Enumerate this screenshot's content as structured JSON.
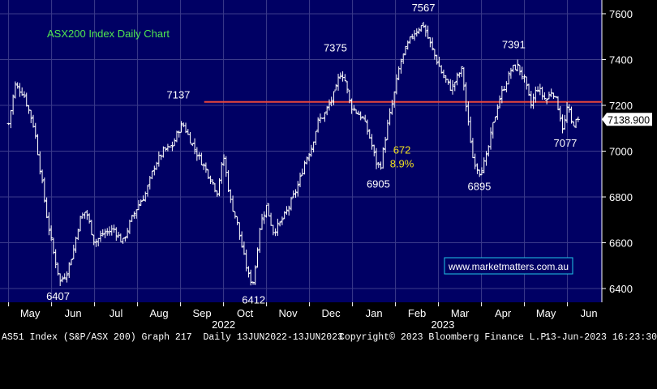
{
  "chart_data": {
    "type": "bar",
    "subtype": "ohlc",
    "title": "ASX200 Index Daily Chart",
    "ylim": [
      6340,
      7660
    ],
    "yticks": [
      6400,
      6600,
      6800,
      7000,
      7200,
      7400,
      7600
    ],
    "ytick_labels": [
      "6400",
      "6600",
      "6800",
      "7000",
      "7200",
      "7400",
      "7600"
    ],
    "month_labels": [
      "May",
      "Jun",
      "Jul",
      "Aug",
      "Sep",
      "Oct",
      "Nov",
      "Dec",
      "Jan",
      "Feb",
      "Mar",
      "Apr",
      "May",
      "Jun"
    ],
    "year_labels": [
      "2022",
      "2023"
    ],
    "last_price_label": "7138.900",
    "horizontal_line": {
      "value": 7215,
      "color": "#e8463a"
    },
    "series": [
      {
        "values": [
          {
            "t": 0.0,
            "v": 7120
          },
          {
            "t": 0.15,
            "v": 7290
          },
          {
            "t": 0.35,
            "v": 7250
          },
          {
            "t": 0.6,
            "v": 7100
          },
          {
            "t": 0.75,
            "v": 6900
          },
          {
            "t": 0.9,
            "v": 6700
          },
          {
            "t": 1.05,
            "v": 6550
          },
          {
            "t": 1.2,
            "v": 6430
          },
          {
            "t": 1.35,
            "v": 6470
          },
          {
            "t": 1.5,
            "v": 6560
          },
          {
            "t": 1.65,
            "v": 6700
          },
          {
            "t": 1.8,
            "v": 6740
          },
          {
            "t": 2.0,
            "v": 6600
          },
          {
            "t": 2.2,
            "v": 6640
          },
          {
            "t": 2.45,
            "v": 6660
          },
          {
            "t": 2.65,
            "v": 6600
          },
          {
            "t": 2.85,
            "v": 6700
          },
          {
            "t": 3.0,
            "v": 6760
          },
          {
            "t": 3.2,
            "v": 6820
          },
          {
            "t": 3.4,
            "v": 6940
          },
          {
            "t": 3.6,
            "v": 7000
          },
          {
            "t": 3.8,
            "v": 7020
          },
          {
            "t": 3.95,
            "v": 7090
          },
          {
            "t": 4.05,
            "v": 7120
          },
          {
            "t": 4.2,
            "v": 7060
          },
          {
            "t": 4.35,
            "v": 7000
          },
          {
            "t": 4.5,
            "v": 6950
          },
          {
            "t": 4.7,
            "v": 6880
          },
          {
            "t": 4.85,
            "v": 6820
          },
          {
            "t": 5.0,
            "v": 6980
          },
          {
            "t": 5.15,
            "v": 6790
          },
          {
            "t": 5.3,
            "v": 6700
          },
          {
            "t": 5.45,
            "v": 6560
          },
          {
            "t": 5.6,
            "v": 6440
          },
          {
            "t": 5.7,
            "v": 6430
          },
          {
            "t": 5.85,
            "v": 6680
          },
          {
            "t": 6.0,
            "v": 6760
          },
          {
            "t": 6.15,
            "v": 6650
          },
          {
            "t": 6.3,
            "v": 6680
          },
          {
            "t": 6.45,
            "v": 6730
          },
          {
            "t": 6.6,
            "v": 6790
          },
          {
            "t": 6.75,
            "v": 6860
          },
          {
            "t": 6.9,
            "v": 6960
          },
          {
            "t": 7.05,
            "v": 7020
          },
          {
            "t": 7.2,
            "v": 7130
          },
          {
            "t": 7.35,
            "v": 7160
          },
          {
            "t": 7.5,
            "v": 7220
          },
          {
            "t": 7.6,
            "v": 7260
          },
          {
            "t": 7.7,
            "v": 7340
          },
          {
            "t": 7.8,
            "v": 7330
          },
          {
            "t": 7.95,
            "v": 7200
          },
          {
            "t": 8.1,
            "v": 7170
          },
          {
            "t": 8.25,
            "v": 7140
          },
          {
            "t": 8.4,
            "v": 7060
          },
          {
            "t": 8.55,
            "v": 6950
          },
          {
            "t": 8.65,
            "v": 6930
          },
          {
            "t": 8.8,
            "v": 7100
          },
          {
            "t": 8.95,
            "v": 7230
          },
          {
            "t": 9.1,
            "v": 7380
          },
          {
            "t": 9.25,
            "v": 7450
          },
          {
            "t": 9.4,
            "v": 7510
          },
          {
            "t": 9.55,
            "v": 7540
          },
          {
            "t": 9.65,
            "v": 7550
          },
          {
            "t": 9.8,
            "v": 7470
          },
          {
            "t": 9.95,
            "v": 7400
          },
          {
            "t": 10.1,
            "v": 7330
          },
          {
            "t": 10.3,
            "v": 7270
          },
          {
            "t": 10.45,
            "v": 7330
          },
          {
            "t": 10.55,
            "v": 7360
          },
          {
            "t": 10.65,
            "v": 7180
          },
          {
            "t": 10.8,
            "v": 6970
          },
          {
            "t": 10.95,
            "v": 6910
          },
          {
            "t": 11.1,
            "v": 6960
          },
          {
            "t": 11.25,
            "v": 7100
          },
          {
            "t": 11.4,
            "v": 7220
          },
          {
            "t": 11.55,
            "v": 7290
          },
          {
            "t": 11.7,
            "v": 7360
          },
          {
            "t": 11.85,
            "v": 7370
          },
          {
            "t": 12.0,
            "v": 7310
          },
          {
            "t": 12.15,
            "v": 7200
          },
          {
            "t": 12.3,
            "v": 7280
          },
          {
            "t": 12.5,
            "v": 7220
          },
          {
            "t": 12.65,
            "v": 7270
          },
          {
            "t": 12.8,
            "v": 7180
          },
          {
            "t": 12.9,
            "v": 7090
          },
          {
            "t": 13.0,
            "v": 7200
          },
          {
            "t": 13.1,
            "v": 7120
          },
          {
            "t": 13.25,
            "v": 7130
          }
        ]
      }
    ],
    "annotations": [
      {
        "text": "6407",
        "t": 1.15,
        "v": 6350,
        "color": "#ffffff"
      },
      {
        "text": "7137",
        "t": 3.95,
        "v": 7230,
        "color": "#ffffff"
      },
      {
        "text": "6412",
        "t": 5.7,
        "v": 6335,
        "color": "#ffffff"
      },
      {
        "text": "7375",
        "t": 7.6,
        "v": 7435,
        "color": "#ffffff"
      },
      {
        "text": "6905",
        "t": 8.6,
        "v": 6840,
        "color": "#ffffff"
      },
      {
        "text": "672",
        "t": 9.15,
        "v": 6990,
        "color": "#f0e020"
      },
      {
        "text": "8.9%",
        "t": 9.15,
        "v": 6930,
        "color": "#f0e020"
      },
      {
        "text": "7567",
        "t": 9.65,
        "v": 7610,
        "color": "#ffffff"
      },
      {
        "text": "6895",
        "t": 10.95,
        "v": 6830,
        "color": "#ffffff"
      },
      {
        "text": "7391",
        "t": 11.75,
        "v": 7450,
        "color": "#ffffff"
      },
      {
        "text": "7077",
        "t": 12.95,
        "v": 7020,
        "color": "#ffffff"
      }
    ],
    "watermark": "www.marketmatters.com.au",
    "colors": {
      "background": "#000064",
      "grid": "#3c3c8c",
      "bars": "#ffffff",
      "title": "#50e650",
      "axis_text": "#ffffff"
    }
  },
  "footer": {
    "left": "AS51 Index (S&P/ASX 200) Graph 217  Daily 13JUN2022-13JUN2023",
    "middle": "Copyright© 2023 Bloomberg Finance L.P.",
    "right": "13-Jun-2023 16:23:30"
  }
}
